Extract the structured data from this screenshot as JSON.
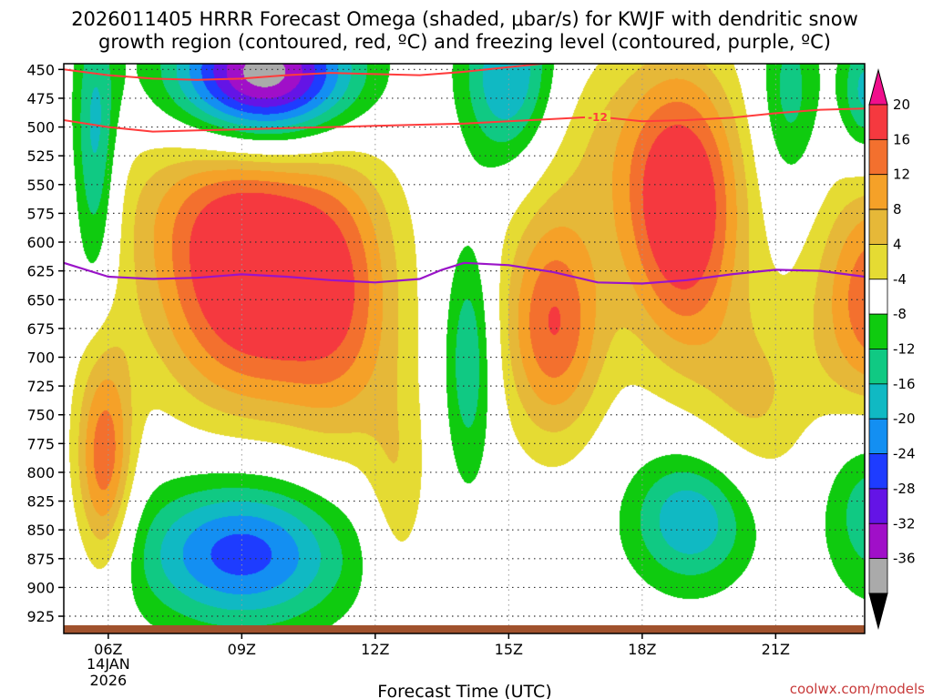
{
  "chart_data": {
    "type": "heatmap",
    "title_line1": "2026011405 HRRR Forecast Omega (shaded, μbar/s) for KWJF with dendritic snow",
    "title_line2": "growth region (contoured, red, ºC) and freezing level (contoured, purple, ºC)",
    "xlabel": "Forecast Time (UTC)",
    "x_ticks": [
      "06Z",
      "09Z",
      "12Z",
      "15Z",
      "18Z",
      "21Z"
    ],
    "x_tick_hours": [
      6,
      9,
      12,
      15,
      18,
      21
    ],
    "x_date_line1": "14JAN",
    "x_date_line2": "2026",
    "xlim_hours": [
      5,
      23
    ],
    "y_ticks": [
      "450",
      "475",
      "500",
      "525",
      "550",
      "575",
      "600",
      "625",
      "650",
      "675",
      "700",
      "725",
      "750",
      "775",
      "800",
      "825",
      "850",
      "875",
      "900",
      "925"
    ],
    "y_tick_values": [
      450,
      475,
      500,
      525,
      550,
      575,
      600,
      625,
      650,
      675,
      700,
      725,
      750,
      775,
      800,
      825,
      850,
      875,
      900,
      925
    ],
    "ylim_mb": [
      445,
      940
    ],
    "colorbar": {
      "labels": [
        "20",
        "16",
        "12",
        "8",
        "4",
        "-4",
        "-8",
        "-12",
        "-16",
        "-20",
        "-24",
        "-28",
        "-32",
        "-36"
      ],
      "colors": [
        "#f00f8c",
        "#f5393f",
        "#f3702e",
        "#f5a128",
        "#e6b838",
        "#e5db33",
        "#ffffff",
        "#0fcb0f",
        "#10c983",
        "#10b9c3",
        "#138ff2",
        "#1e3cff",
        "#6414e6",
        "#a00fc8",
        "#aaaaaa",
        "#000000"
      ]
    },
    "omega_levels": [
      -36,
      -32,
      -28,
      -24,
      -20,
      -16,
      -12,
      -8,
      -4,
      4,
      8,
      12,
      16,
      20
    ],
    "omega_centers": [
      {
        "h": 9.3,
        "p": 640,
        "amp": 26,
        "sh": 1.6,
        "sp": 75
      },
      {
        "h": 11.3,
        "p": 660,
        "amp": 10,
        "sh": 0.9,
        "sp": 95
      },
      {
        "h": 5.9,
        "p": 790,
        "amp": 19,
        "sh": 0.45,
        "sp": 70
      },
      {
        "h": 8.6,
        "p": 560,
        "amp": 8,
        "sh": 1.8,
        "sp": 50
      },
      {
        "h": 18.9,
        "p": 575,
        "amp": 26,
        "sh": 0.95,
        "sp": 85
      },
      {
        "h": 16.0,
        "p": 670,
        "amp": 20,
        "sh": 0.8,
        "sp": 70
      },
      {
        "h": 23.3,
        "p": 650,
        "amp": 20,
        "sh": 1.0,
        "sp": 75
      },
      {
        "h": 12.5,
        "p": 820,
        "amp": 7,
        "sh": 0.5,
        "sp": 70
      },
      {
        "h": 20.5,
        "p": 740,
        "amp": 8,
        "sh": 0.9,
        "sp": 60
      },
      {
        "h": 16.9,
        "p": 510,
        "amp": 6,
        "sh": 1.6,
        "sp": 60
      },
      {
        "h": 9.5,
        "p": 455,
        "amp": -36,
        "sh": 1.4,
        "sp": 42
      },
      {
        "h": 5.7,
        "p": 520,
        "amp": -14,
        "sh": 0.35,
        "sp": 90
      },
      {
        "h": 9.0,
        "p": 870,
        "amp": -22,
        "sh": 1.7,
        "sp": 45
      },
      {
        "h": 14.1,
        "p": 700,
        "amp": -12,
        "sh": 0.4,
        "sp": 75
      },
      {
        "h": 15.0,
        "p": 460,
        "amp": -18,
        "sh": 0.75,
        "sp": 55
      },
      {
        "h": 19.1,
        "p": 840,
        "amp": -16,
        "sh": 1.0,
        "sp": 42
      },
      {
        "h": 23.2,
        "p": 830,
        "amp": -12,
        "sh": 0.8,
        "sp": 55
      },
      {
        "h": 21.3,
        "p": 470,
        "amp": -10,
        "sh": 0.5,
        "sp": 60
      },
      {
        "h": 23.0,
        "p": 470,
        "amp": -14,
        "sh": 0.4,
        "sp": 40
      }
    ],
    "dgz_minus12_line": {
      "label": "-12",
      "hours": [
        5,
        6,
        7,
        8,
        9,
        10,
        11,
        12,
        13,
        14,
        15,
        16,
        17,
        18,
        19,
        20,
        21,
        22,
        23
      ],
      "pressure": [
        494,
        500,
        504,
        503,
        502,
        501,
        500,
        499,
        498,
        497,
        495,
        493,
        491,
        495,
        494,
        492,
        488,
        485,
        484
      ]
    },
    "dgz_upper_line": {
      "hours": [
        5,
        6,
        7,
        8,
        9,
        10,
        11,
        12,
        13,
        14,
        15,
        16,
        17,
        18,
        19,
        20,
        21,
        22,
        23
      ],
      "pressure": [
        450,
        455,
        458,
        459,
        458,
        455,
        453,
        454,
        455,
        452,
        448,
        444,
        442,
        443,
        441,
        440,
        440,
        441,
        441
      ]
    },
    "freezing_level_line": {
      "hours": [
        5,
        6,
        7,
        8,
        9,
        10,
        11,
        12,
        13,
        13.5,
        14,
        15,
        16,
        17,
        18,
        19,
        20,
        21,
        22,
        23
      ],
      "pressure": [
        618,
        630,
        632,
        631,
        628,
        630,
        633,
        635,
        632,
        624,
        618,
        620,
        626,
        635,
        636,
        633,
        628,
        624,
        625,
        630
      ]
    },
    "ground_band_color": "#a0522d",
    "credit": "coolwx.com/models"
  }
}
